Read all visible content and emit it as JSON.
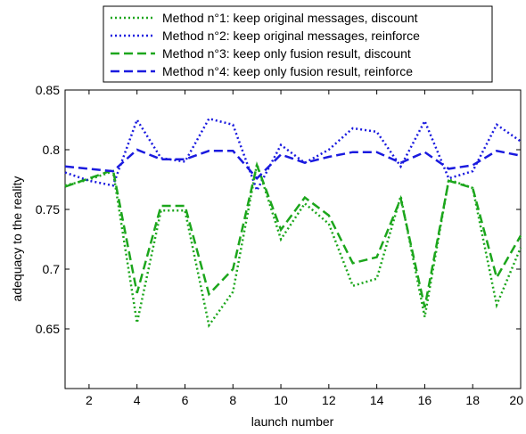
{
  "chart_data": {
    "type": "line",
    "title": "",
    "xlabel": "launch number",
    "ylabel": "adequacy to the reality",
    "xlim": [
      1,
      20
    ],
    "ylim": [
      0.6,
      0.85
    ],
    "grid": false,
    "legend_position": "top",
    "x": [
      1,
      2,
      3,
      4,
      5,
      6,
      7,
      8,
      9,
      10,
      11,
      12,
      13,
      14,
      15,
      16,
      17,
      18,
      19,
      20
    ],
    "x_ticks": [
      "2",
      "4",
      "6",
      "8",
      "10",
      "12",
      "14",
      "16",
      "18",
      "20"
    ],
    "y_ticks": [
      "0.65",
      "0.7",
      "0.75",
      "0.8",
      "0.85"
    ],
    "series": [
      {
        "name": "Method n°1: keep original messages, discount",
        "color": "#1ca61c",
        "style": "dotted",
        "values": [
          0.77,
          0.775,
          0.782,
          0.655,
          0.749,
          0.749,
          0.653,
          0.681,
          0.788,
          0.725,
          0.755,
          0.738,
          0.686,
          0.692,
          0.761,
          0.66,
          0.775,
          0.768,
          0.67,
          0.718
        ]
      },
      {
        "name": "Method n°2: keep original messages, reinforce",
        "color": "#1a1adf",
        "style": "dotted",
        "values": [
          0.781,
          0.774,
          0.77,
          0.825,
          0.793,
          0.79,
          0.826,
          0.821,
          0.766,
          0.804,
          0.789,
          0.8,
          0.818,
          0.815,
          0.786,
          0.824,
          0.776,
          0.782,
          0.821,
          0.807
        ]
      },
      {
        "name": "Method n°3: keep only fusion result, discount",
        "color": "#1ca61c",
        "style": "dashed",
        "values": [
          0.769,
          0.776,
          0.783,
          0.68,
          0.753,
          0.753,
          0.679,
          0.7,
          0.787,
          0.733,
          0.76,
          0.745,
          0.705,
          0.71,
          0.759,
          0.668,
          0.774,
          0.768,
          0.693,
          0.728
        ]
      },
      {
        "name": "Method n°4: keep only fusion result, reinforce",
        "color": "#1a1adf",
        "style": "dashed",
        "values": [
          0.786,
          0.784,
          0.782,
          0.8,
          0.792,
          0.792,
          0.799,
          0.799,
          0.776,
          0.796,
          0.789,
          0.794,
          0.798,
          0.798,
          0.789,
          0.798,
          0.784,
          0.787,
          0.799,
          0.795
        ]
      }
    ]
  }
}
